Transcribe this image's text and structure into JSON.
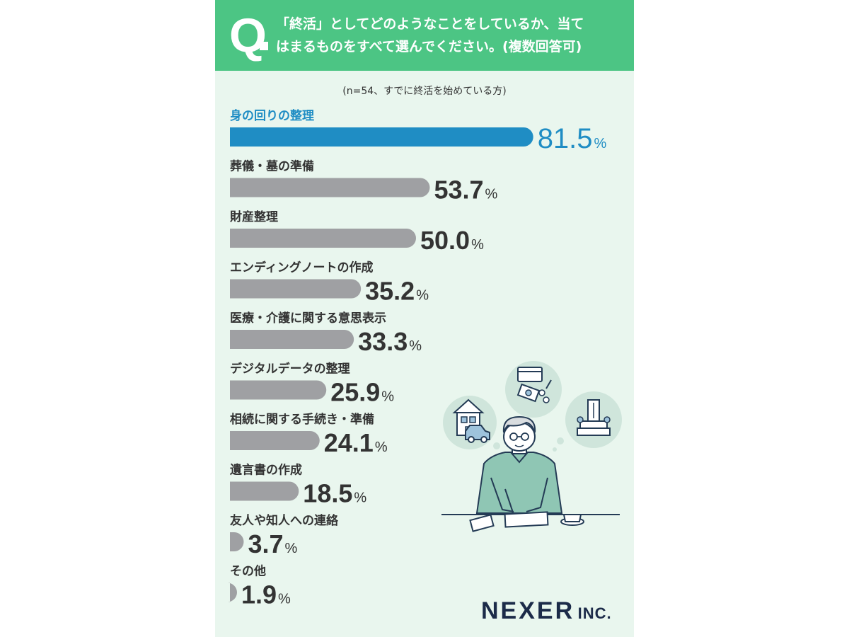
{
  "question": {
    "mark": "Q",
    "line1": "「終活」としてどのようなことをしているか、当て",
    "line2": "はまるものをすべて選んでください。(複数回答可)"
  },
  "chart_data": {
    "type": "bar",
    "orientation": "horizontal",
    "note": "(n=54、すでに終活を始めている方)",
    "unit": "%",
    "categories": [
      "身の回りの整理",
      "葬儀・墓の準備",
      "財産整理",
      "エンディングノートの作成",
      "医療・介護に関する意思表示",
      "デジタルデータの整理",
      "相続に関する手続き・準備",
      "遺言書の作成",
      "友人や知人への連絡",
      "その他"
    ],
    "values": [
      81.5,
      53.7,
      50.0,
      35.2,
      33.3,
      25.9,
      24.1,
      18.5,
      3.7,
      1.9
    ],
    "value_labels": [
      "81.5",
      "53.7",
      "50.0",
      "35.2",
      "33.3",
      "25.9",
      "24.1",
      "18.5",
      "3.7",
      "1.9"
    ],
    "xlim": [
      0,
      100
    ],
    "highlight_index": 0,
    "colors": {
      "highlight": "#1f8dc4",
      "default": "#9fa0a3",
      "highlight_text": "#1f8dc4",
      "label_text": "#333333"
    }
  },
  "logo": {
    "name": "NEXER",
    "suffix": "INC."
  }
}
